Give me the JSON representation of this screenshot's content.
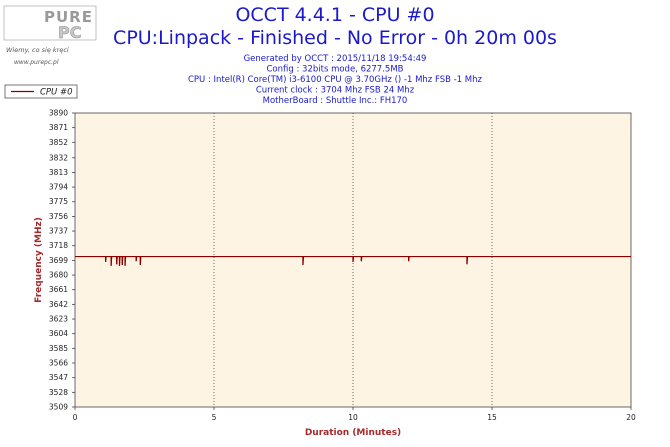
{
  "header": {
    "title": "OCCT 4.4.1 - CPU #0",
    "subtitle": "CPU:Linpack - Finished - No Error - 0h 20m 00s",
    "info_lines": [
      "Generated by OCCT : 2015/11/18 19:54:49",
      "Config : 32bits mode, 6277.5MB",
      "CPU : Intel(R) Core(TM) i3-6100 CPU @ 3.70GHz () -1 Mhz FSB -1 Mhz",
      "Current clock : 3704 Mhz FSB 24 Mhz",
      "MotherBoard : Shuttle Inc.: FH170"
    ]
  },
  "logo": {
    "top": "PURE",
    "bottom": "PC",
    "slogan": "Wiemy, co się kręci",
    "url": "www.purepc.pl"
  },
  "colors": {
    "series": "#8b0000",
    "plot_bg": "#fdf4e3",
    "title": "#1a1acc",
    "axis_title": "#a52a2a"
  },
  "chart_data": {
    "type": "line",
    "title": "OCCT 4.4.1 - CPU #0",
    "xlabel": "Duration (Minutes)",
    "ylabel": "Frequency (MHz)",
    "xlim": [
      0,
      20
    ],
    "ylim": [
      3509,
      3890
    ],
    "x_ticks": [
      0,
      5,
      10,
      15,
      20
    ],
    "y_ticks": [
      3509,
      3528,
      3547,
      3566,
      3585,
      3604,
      3623,
      3642,
      3661,
      3680,
      3699,
      3718,
      3737,
      3756,
      3775,
      3794,
      3813,
      3832,
      3852,
      3871,
      3890
    ],
    "grid": "vertical dotted at 5, 10, 15",
    "legend": "top-left",
    "series": [
      {
        "name": "CPU #0",
        "baseline": 3704,
        "dips": [
          {
            "x": 1.1,
            "y": 3697
          },
          {
            "x": 1.3,
            "y": 3692
          },
          {
            "x": 1.5,
            "y": 3694
          },
          {
            "x": 1.6,
            "y": 3692
          },
          {
            "x": 1.7,
            "y": 3693
          },
          {
            "x": 1.8,
            "y": 3692
          },
          {
            "x": 2.2,
            "y": 3698
          },
          {
            "x": 2.35,
            "y": 3693
          },
          {
            "x": 8.2,
            "y": 3693
          },
          {
            "x": 10.0,
            "y": 3697
          },
          {
            "x": 10.3,
            "y": 3698
          },
          {
            "x": 12.0,
            "y": 3698
          },
          {
            "x": 14.1,
            "y": 3694
          }
        ]
      }
    ]
  }
}
